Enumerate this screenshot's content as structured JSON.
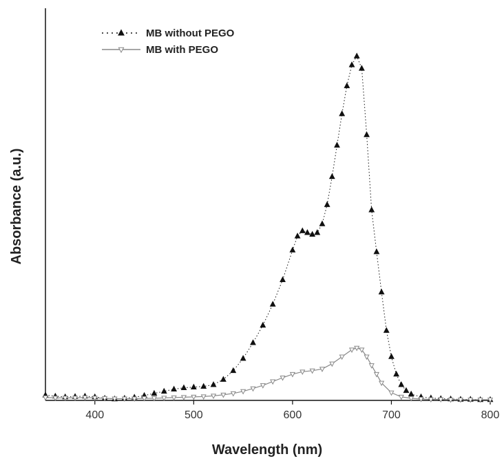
{
  "chart_data": {
    "type": "scatter",
    "xlabel": "Wavelength (nm)",
    "ylabel": "Absorbance (a.u.)",
    "xlim": [
      350,
      800
    ],
    "ylim": [
      0,
      1.0
    ],
    "xticks": [
      400,
      500,
      600,
      700,
      800
    ],
    "y_tick_labels_shown": false,
    "grid": false,
    "legend_position": "top-left",
    "series": [
      {
        "name": "MB without PEGO",
        "marker": "filled-triangle-up",
        "line": "dotted",
        "color": "#111111",
        "x": [
          350,
          360,
          370,
          380,
          390,
          400,
          410,
          420,
          430,
          440,
          450,
          460,
          470,
          480,
          490,
          500,
          510,
          520,
          530,
          540,
          550,
          560,
          570,
          580,
          590,
          600,
          605,
          610,
          615,
          620,
          625,
          630,
          635,
          640,
          645,
          650,
          655,
          660,
          665,
          670,
          675,
          680,
          685,
          690,
          695,
          700,
          705,
          710,
          715,
          720,
          730,
          740,
          750,
          760,
          770,
          780,
          790,
          800
        ],
        "y": [
          0.015,
          0.012,
          0.01,
          0.011,
          0.012,
          0.01,
          0.006,
          0.004,
          0.006,
          0.009,
          0.014,
          0.02,
          0.026,
          0.032,
          0.036,
          0.038,
          0.04,
          0.045,
          0.06,
          0.085,
          0.12,
          0.165,
          0.215,
          0.275,
          0.345,
          0.43,
          0.47,
          0.485,
          0.48,
          0.475,
          0.48,
          0.505,
          0.56,
          0.64,
          0.73,
          0.82,
          0.9,
          0.96,
          0.985,
          0.95,
          0.76,
          0.545,
          0.425,
          0.31,
          0.2,
          0.125,
          0.075,
          0.045,
          0.028,
          0.018,
          0.01,
          0.007,
          0.005,
          0.004,
          0.003,
          0.003,
          0.002,
          0.002
        ]
      },
      {
        "name": "MB with PEGO",
        "marker": "open-triangle-down",
        "line": "solid",
        "color": "#888888",
        "x": [
          350,
          360,
          370,
          380,
          390,
          400,
          410,
          420,
          430,
          440,
          450,
          460,
          470,
          480,
          490,
          500,
          510,
          520,
          530,
          540,
          550,
          560,
          570,
          580,
          590,
          600,
          610,
          620,
          630,
          640,
          650,
          660,
          665,
          670,
          675,
          680,
          685,
          690,
          700,
          710,
          720,
          730,
          740,
          750,
          760,
          770,
          780,
          790,
          800
        ],
        "y": [
          0.008,
          0.007,
          0.007,
          0.007,
          0.008,
          0.007,
          0.006,
          0.005,
          0.005,
          0.005,
          0.006,
          0.006,
          0.007,
          0.008,
          0.009,
          0.01,
          0.011,
          0.013,
          0.016,
          0.02,
          0.026,
          0.034,
          0.043,
          0.054,
          0.065,
          0.075,
          0.082,
          0.085,
          0.09,
          0.105,
          0.125,
          0.145,
          0.15,
          0.145,
          0.125,
          0.1,
          0.075,
          0.05,
          0.022,
          0.01,
          0.006,
          0.004,
          0.003,
          0.003,
          0.002,
          0.002,
          0.002,
          0.002,
          0.002
        ]
      }
    ]
  }
}
